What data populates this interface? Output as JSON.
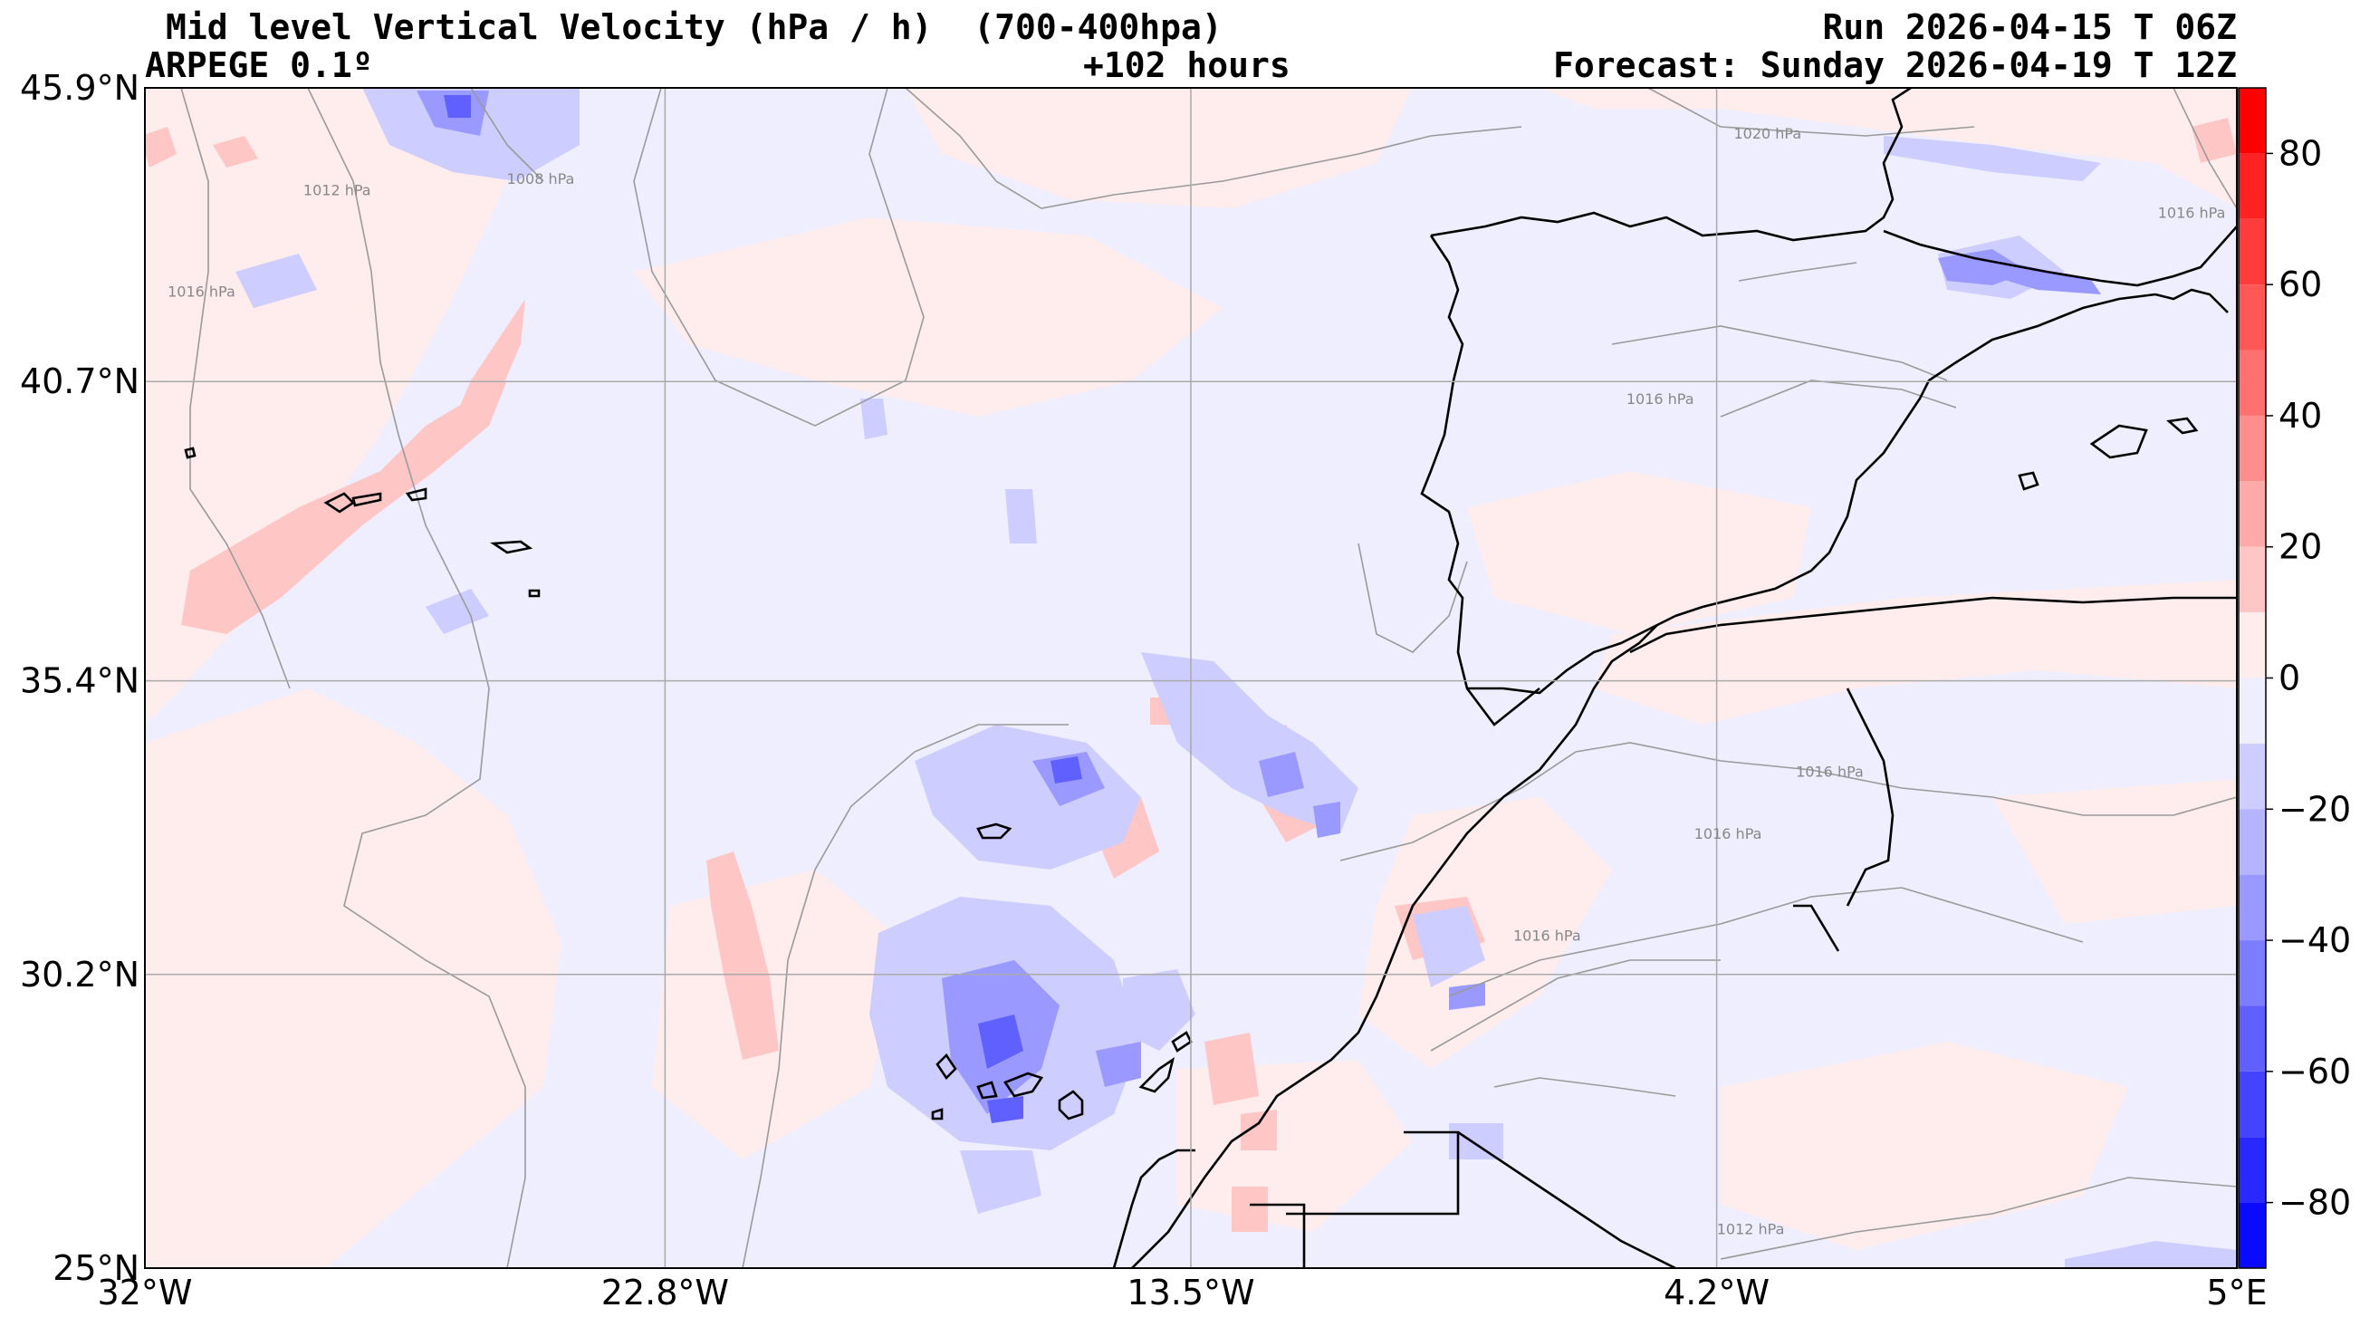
{
  "header": {
    "title": "Mid level Vertical Velocity (hPa / h)  (700-400hpa)",
    "model": "ARPEGE 0.1º",
    "lead": "+102 hours",
    "run": "Run 2026-04-15 T 06Z",
    "forecast": "Forecast: Sunday 2026-04-19 T 12Z"
  },
  "map": {
    "lat_range": [
      25.0,
      45.9
    ],
    "lon_range": [
      -32.0,
      5.0
    ],
    "lat_ticks": [
      "45.9°N",
      "40.7°N",
      "35.4°N",
      "30.2°N",
      "25°N"
    ],
    "lon_ticks": [
      "32°W",
      "22.8°W",
      "13.5°W",
      "4.2°W",
      "5°E"
    ],
    "lat_tick_values": [
      45.9,
      40.7,
      35.4,
      30.2,
      25.0
    ],
    "lon_tick_values": [
      -32.0,
      -22.8,
      -13.5,
      -4.2,
      5.0
    ],
    "isobar_labels": [
      {
        "text": "1020 hPa",
        "lon": -3.3,
        "lat": 45.0
      },
      {
        "text": "1008 hPa",
        "lon": -25.0,
        "lat": 44.2
      },
      {
        "text": "1012 hPa",
        "lon": -28.6,
        "lat": 44.0
      },
      {
        "text": "1016 hPa",
        "lon": -31.0,
        "lat": 42.2
      },
      {
        "text": "1016 hPa",
        "lon": 4.2,
        "lat": 43.6
      },
      {
        "text": "1016 hPa",
        "lon": -5.2,
        "lat": 40.3
      },
      {
        "text": "1016 hPa",
        "lon": -2.2,
        "lat": 33.7
      },
      {
        "text": "1016 hPa",
        "lon": -4.0,
        "lat": 32.6
      },
      {
        "text": "1016 hPa",
        "lon": -7.2,
        "lat": 30.8
      },
      {
        "text": "1012 hPa",
        "lon": -3.6,
        "lat": 25.6
      }
    ]
  },
  "colorbar": {
    "ticks": [
      "80",
      "60",
      "40",
      "20",
      "0",
      "−20",
      "−40",
      "−60",
      "−80"
    ],
    "tick_values": [
      80,
      60,
      40,
      20,
      0,
      -20,
      -40,
      -60,
      -80
    ],
    "range": [
      -90,
      90
    ],
    "levels": [
      {
        "from": 80,
        "to": 90,
        "color": "#ff0000"
      },
      {
        "from": 70,
        "to": 80,
        "color": "#ff2222"
      },
      {
        "from": 60,
        "to": 70,
        "color": "#ff3b3b"
      },
      {
        "from": 50,
        "to": 60,
        "color": "#ff5656"
      },
      {
        "from": 40,
        "to": 50,
        "color": "#ff7070"
      },
      {
        "from": 30,
        "to": 40,
        "color": "#ff8d8d"
      },
      {
        "from": 20,
        "to": 30,
        "color": "#ffaaaa"
      },
      {
        "from": 10,
        "to": 20,
        "color": "#ffc6c6"
      },
      {
        "from": 0,
        "to": 10,
        "color": "#ffecec"
      },
      {
        "from": -10,
        "to": 0,
        "color": "#eeeeff"
      },
      {
        "from": -20,
        "to": -10,
        "color": "#cdcdff"
      },
      {
        "from": -30,
        "to": -20,
        "color": "#b4b4ff"
      },
      {
        "from": -40,
        "to": -30,
        "color": "#9999ff"
      },
      {
        "from": -50,
        "to": -40,
        "color": "#7d7dff"
      },
      {
        "from": -60,
        "to": -50,
        "color": "#6060ff"
      },
      {
        "from": -70,
        "to": -60,
        "color": "#4444ff"
      },
      {
        "from": -80,
        "to": -70,
        "color": "#2828ff"
      },
      {
        "from": -90,
        "to": -80,
        "color": "#0a0aff"
      }
    ]
  },
  "colors": {
    "background_field": "#eeeeff",
    "positive_weak": "#ffecec",
    "positive_mid": "#ffc6c6",
    "negative_weak": "#cdcdff",
    "negative_mid": "#9999ff",
    "negative_strong": "#6060ff",
    "coast": "#000000",
    "isobar": "#9a9a9a",
    "grid": "#aaaaaa"
  }
}
